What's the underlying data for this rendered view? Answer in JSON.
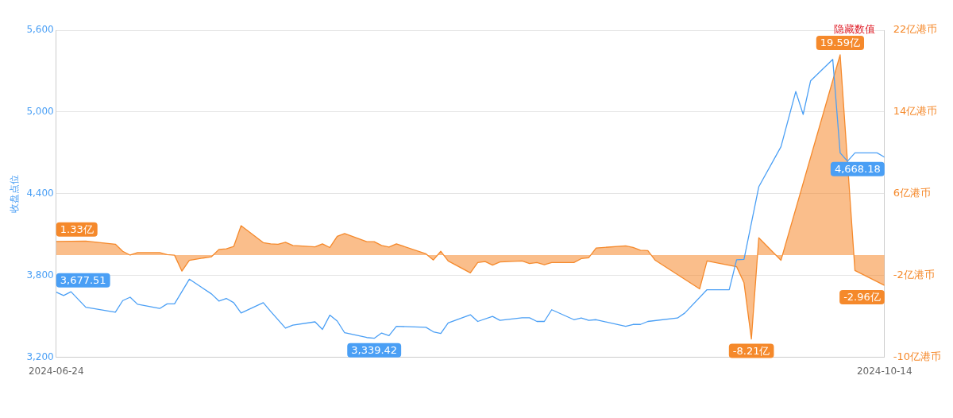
{
  "chart_data": {
    "type": "line",
    "ylabel": "收盘点位",
    "annotations": [
      "隐藏数值"
    ],
    "xlim": [
      "2024-06-24",
      "2024-10-14"
    ],
    "xticks": [
      "2024-06-24",
      "2024-10-14"
    ],
    "ylim": [
      3200,
      5600
    ],
    "yticks": [
      {
        "value": 3200,
        "label": "3,200"
      },
      {
        "value": 3800,
        "label": "3,800"
      },
      {
        "value": 4400,
        "label": "4,400"
      },
      {
        "value": 5000,
        "label": "5,000"
      },
      {
        "value": 5600,
        "label": "5,600"
      }
    ],
    "y2lim": [
      -10,
      22
    ],
    "y2ticks": [
      {
        "value": -10,
        "label": "-10亿港币"
      },
      {
        "value": -2,
        "label": "-2亿港币"
      },
      {
        "value": 6,
        "label": "6亿港币"
      },
      {
        "value": 14,
        "label": "14亿港币"
      },
      {
        "value": 22,
        "label": "22亿港币"
      }
    ],
    "grid": "y",
    "marker": "none",
    "series": [
      {
        "color": "#4a9ff5",
        "x": [
          "2024-06-24",
          "2024-06-25",
          "2024-06-26",
          "2024-06-28",
          "2024-07-02",
          "2024-07-03",
          "2024-07-04",
          "2024-07-05",
          "2024-07-08",
          "2024-07-09",
          "2024-07-10",
          "2024-07-12",
          "2024-07-15",
          "2024-07-16",
          "2024-07-17",
          "2024-07-18",
          "2024-07-19",
          "2024-07-22",
          "2024-07-23",
          "2024-07-25",
          "2024-07-26",
          "2024-07-29",
          "2024-07-30",
          "2024-07-31",
          "2024-08-01",
          "2024-08-02",
          "2024-08-05",
          "2024-08-06",
          "2024-08-07",
          "2024-08-08",
          "2024-08-09",
          "2024-08-13",
          "2024-08-14",
          "2024-08-15",
          "2024-08-16",
          "2024-08-19",
          "2024-08-20",
          "2024-08-22",
          "2024-08-23",
          "2024-08-26",
          "2024-08-27",
          "2024-08-28",
          "2024-08-29",
          "2024-08-30",
          "2024-09-02",
          "2024-09-03",
          "2024-09-04",
          "2024-09-05",
          "2024-09-09",
          "2024-09-10",
          "2024-09-11",
          "2024-09-12",
          "2024-09-16",
          "2024-09-17",
          "2024-09-20",
          "2024-09-23",
          "2024-09-24",
          "2024-09-25",
          "2024-09-27",
          "2024-09-30",
          "2024-10-02",
          "2024-10-03",
          "2024-10-04",
          "2024-10-07",
          "2024-10-08",
          "2024-10-09",
          "2024-10-10",
          "2024-10-13",
          "2024-10-14"
        ],
        "values": [
          3677.51,
          3653,
          3681,
          3567,
          3531,
          3616,
          3641,
          3589,
          3558,
          3592,
          3592,
          3773,
          3665,
          3613,
          3632,
          3601,
          3525,
          3601,
          3537,
          3414,
          3436,
          3460,
          3405,
          3509,
          3466,
          3380,
          3345,
          3339.42,
          3378,
          3359,
          3427,
          3420,
          3387,
          3375,
          3452,
          3512,
          3463,
          3500,
          3471,
          3490,
          3490,
          3463,
          3463,
          3549,
          3476,
          3488,
          3471,
          3476,
          3427,
          3441,
          3441,
          3463,
          3488,
          3525,
          3696,
          3696,
          3916,
          3919,
          4451,
          4745,
          5150,
          4982,
          5228,
          5386,
          4700,
          4639,
          4700,
          4700,
          4668.18
        ],
        "value_labels": [
          "3,677.51",
          null,
          null,
          null,
          null,
          null,
          null,
          null,
          null,
          null,
          null,
          null,
          null,
          null,
          null,
          null,
          null,
          null,
          null,
          null,
          null,
          null,
          null,
          null,
          null,
          null,
          null,
          "3,339.42",
          null,
          null,
          null,
          null,
          null,
          null,
          null,
          null,
          null,
          null,
          null,
          null,
          null,
          null,
          null,
          null,
          null,
          null,
          null,
          null,
          null,
          null,
          null,
          null,
          null,
          null,
          null,
          null,
          null,
          null,
          null,
          null,
          null,
          null,
          null,
          null,
          null,
          null,
          null,
          null,
          "4,668.18"
        ]
      },
      {
        "type": "area",
        "axis": "y2",
        "color": "#f5892b",
        "x": [
          "2024-06-24",
          "2024-06-28",
          "2024-07-02",
          "2024-07-03",
          "2024-07-04",
          "2024-07-05",
          "2024-07-08",
          "2024-07-09",
          "2024-07-10",
          "2024-07-11",
          "2024-07-12",
          "2024-07-15",
          "2024-07-16",
          "2024-07-17",
          "2024-07-18",
          "2024-07-19",
          "2024-07-22",
          "2024-07-23",
          "2024-07-24",
          "2024-07-25",
          "2024-07-26",
          "2024-07-29",
          "2024-07-30",
          "2024-07-31",
          "2024-08-01",
          "2024-08-02",
          "2024-08-05",
          "2024-08-06",
          "2024-08-07",
          "2024-08-08",
          "2024-08-09",
          "2024-08-13",
          "2024-08-14",
          "2024-08-15",
          "2024-08-16",
          "2024-08-19",
          "2024-08-20",
          "2024-08-21",
          "2024-08-22",
          "2024-08-23",
          "2024-08-26",
          "2024-08-27",
          "2024-08-28",
          "2024-08-29",
          "2024-08-30",
          "2024-09-02",
          "2024-09-03",
          "2024-09-04",
          "2024-09-05",
          "2024-09-09",
          "2024-09-10",
          "2024-09-11",
          "2024-09-12",
          "2024-09-13",
          "2024-09-19",
          "2024-09-20",
          "2024-09-24",
          "2024-09-25",
          "2024-09-26",
          "2024-09-27",
          "2024-09-30",
          "2024-10-08",
          "2024-10-10",
          "2024-10-14"
        ],
        "values": [
          1.33,
          1.37,
          1.06,
          0.37,
          0.0,
          0.24,
          0.24,
          0.04,
          -0.01,
          -1.57,
          -0.51,
          -0.16,
          0.55,
          0.61,
          0.84,
          2.88,
          1.22,
          1.1,
          1.06,
          1.25,
          0.94,
          0.81,
          1.1,
          0.74,
          1.84,
          2.1,
          1.31,
          1.31,
          0.94,
          0.78,
          1.1,
          0.12,
          -0.48,
          0.37,
          -0.57,
          -1.74,
          -0.73,
          -0.64,
          -0.98,
          -0.67,
          -0.57,
          -0.82,
          -0.73,
          -0.94,
          -0.73,
          -0.73,
          -0.35,
          -0.26,
          0.69,
          0.9,
          0.74,
          0.47,
          0.43,
          -0.51,
          -3.31,
          -0.57,
          -1.14,
          -2.71,
          -8.21,
          1.69,
          -0.51,
          19.59,
          -1.51,
          -2.96
        ],
        "value_labels": [
          "1.33亿",
          null,
          null,
          null,
          null,
          null,
          null,
          null,
          null,
          null,
          null,
          null,
          null,
          null,
          null,
          null,
          null,
          null,
          null,
          null,
          null,
          null,
          null,
          null,
          null,
          null,
          null,
          null,
          null,
          null,
          null,
          null,
          null,
          null,
          null,
          null,
          null,
          null,
          null,
          null,
          null,
          null,
          null,
          null,
          null,
          null,
          null,
          null,
          null,
          null,
          null,
          null,
          null,
          null,
          null,
          null,
          null,
          null,
          "-8.21亿",
          null,
          null,
          "19.59亿",
          null,
          "-2.96亿"
        ]
      }
    ]
  }
}
